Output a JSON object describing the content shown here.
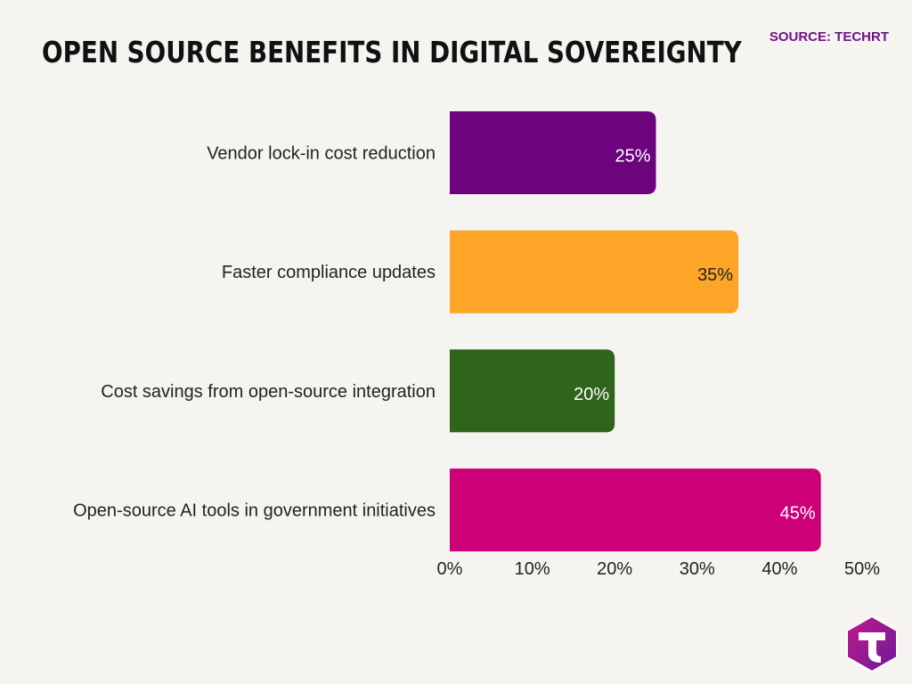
{
  "title": "OPEN SOURCE BENEFITS IN DIGITAL SOVEREIGNTY",
  "source": "SOURCE: TECHRT",
  "logo_icon": "techrt-t-logo",
  "chart_data": {
    "type": "bar",
    "orientation": "horizontal",
    "title": "OPEN SOURCE BENEFITS IN DIGITAL SOVEREIGNTY",
    "categories": [
      "Vendor lock-in cost reduction",
      "Faster compliance updates",
      "Cost savings from open-source integration",
      "Open-source AI tools in government initiatives"
    ],
    "values": [
      25,
      35,
      20,
      45
    ],
    "value_labels": [
      "25%",
      "35%",
      "20%",
      "45%"
    ],
    "colors": [
      "#6c047d",
      "#fca526",
      "#2e651a",
      "#cc0077"
    ],
    "label_colors": [
      "#ffffff",
      "#222222",
      "#ffffff",
      "#ffffff"
    ],
    "xlim": [
      0,
      50
    ],
    "x_ticks": [
      0,
      10,
      20,
      30,
      40,
      50
    ],
    "x_tick_labels": [
      "0%",
      "10%",
      "20%",
      "30%",
      "40%",
      "50%"
    ],
    "xlabel": "",
    "ylabel": "",
    "grid": false,
    "legend": false
  }
}
